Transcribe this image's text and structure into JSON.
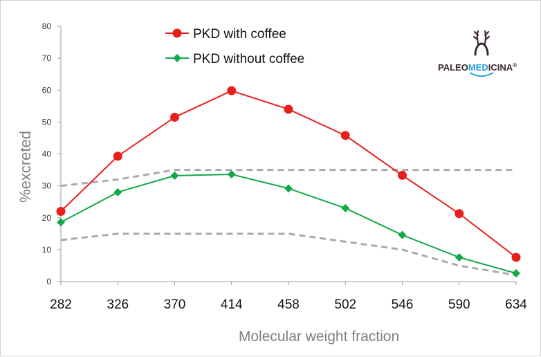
{
  "chart_data": {
    "type": "line",
    "title": "",
    "xlabel": "Molecular weight fraction",
    "ylabel": "%excreted",
    "categories": [
      "282",
      "326",
      "370",
      "414",
      "458",
      "502",
      "546",
      "590",
      "634"
    ],
    "ylim": [
      0,
      80
    ],
    "yticks": [
      0,
      10,
      20,
      30,
      40,
      50,
      60,
      70,
      80
    ],
    "grid": false,
    "legend_position": "top",
    "series": [
      {
        "name": "PKD with coffee",
        "values": [
          22,
          39.3,
          51.5,
          59.8,
          54,
          45.8,
          33.3,
          21.3,
          7.6
        ],
        "color": "#e8201c",
        "marker": "circle"
      },
      {
        "name": "PKD without coffee",
        "values": [
          18.6,
          28,
          33.2,
          33.6,
          29.2,
          23,
          14.6,
          7.6,
          2.6
        ],
        "color": "#14a84a",
        "marker": "diamond"
      }
    ],
    "reference_bands": [
      {
        "values": [
          30,
          32,
          35,
          35,
          35,
          35,
          35,
          35,
          35
        ],
        "color": "#aaaaaa",
        "style": "dashed"
      },
      {
        "values": [
          13,
          15,
          15,
          15,
          15,
          12.5,
          10,
          5,
          2
        ],
        "color": "#aaaaaa",
        "style": "dashed"
      }
    ]
  },
  "logo": {
    "part1": "PALEO",
    "part2": "MED",
    "part3": "ICINA",
    "mark": "®",
    "icon": "deer-antler-icon",
    "color_dark": "#3a2a2a",
    "color_accent": "#2a9fd8"
  }
}
